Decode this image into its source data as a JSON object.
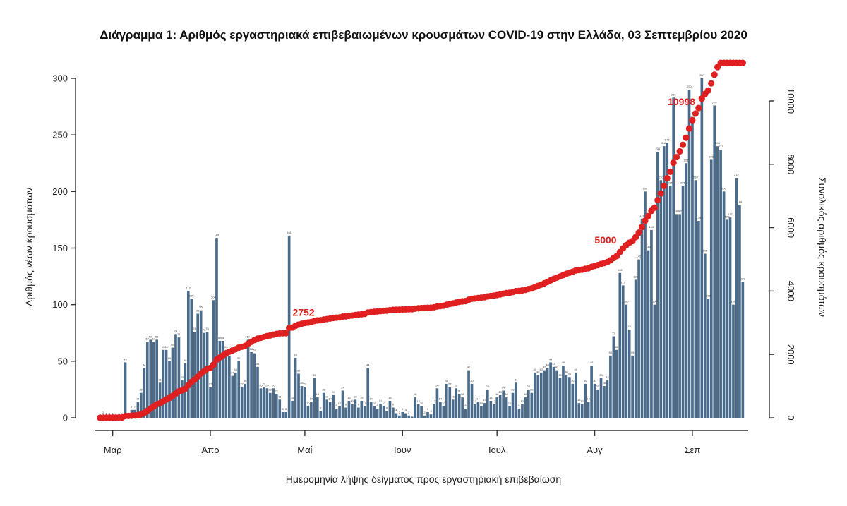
{
  "chart_data": {
    "type": "bar",
    "title": "Διάγραμμα 1: Αριθμός εργαστηριακά επιβεβαιωμένων κρουσμάτων COVID-19 στην Ελλάδα, 03 Σεπτεμβρίου 2020",
    "xlabel": "Ημερομηνία λήψης δείγματος προς εργαστηριακή επιβεβαίωση",
    "ylabel_left": "Αριθμός νέων κρουσμάτων",
    "ylabel_right": "Συνολικός αριθμός κρουσμάτων",
    "x_start_date": "2020-02-26",
    "month_ticks": [
      {
        "label": "Μαρ",
        "day": 4
      },
      {
        "label": "Απρ",
        "day": 35
      },
      {
        "label": "Μαΐ",
        "day": 65
      },
      {
        "label": "Ιουν",
        "day": 96
      },
      {
        "label": "Ιουλ",
        "day": 126
      },
      {
        "label": "Αυγ",
        "day": 157
      },
      {
        "label": "Σεπ",
        "day": 188
      }
    ],
    "ylim_left": [
      0,
      300
    ],
    "yticks_left": [
      0,
      50,
      100,
      150,
      200,
      250,
      300
    ],
    "ylim_right": [
      0,
      10000
    ],
    "yticks_right": [
      0,
      2000,
      4000,
      6000,
      8000,
      10000
    ],
    "daily_new_cases": [
      1,
      2,
      1,
      1,
      1,
      1,
      1,
      1,
      49,
      1,
      7,
      7,
      14,
      22,
      44,
      67,
      69,
      67,
      69,
      31,
      60,
      60,
      50,
      62,
      74,
      71,
      33,
      48,
      112,
      105,
      76,
      92,
      95,
      75,
      76,
      27,
      104,
      159,
      68,
      68,
      60,
      55,
      37,
      40,
      50,
      27,
      30,
      69,
      58,
      57,
      45,
      26,
      27,
      26,
      22,
      26,
      21,
      16,
      5,
      5,
      161,
      15,
      53,
      39,
      28,
      27,
      10,
      14,
      35,
      18,
      6,
      22,
      16,
      14,
      20,
      8,
      10,
      24,
      9,
      15,
      12,
      16,
      9,
      15,
      10,
      44,
      14,
      10,
      8,
      12,
      10,
      6,
      15,
      9,
      4,
      2,
      5,
      4,
      2,
      1,
      18,
      12,
      10,
      2,
      5,
      3,
      12,
      26,
      14,
      10,
      30,
      27,
      16,
      26,
      21,
      18,
      8,
      42,
      30,
      12,
      14,
      10,
      13,
      25,
      15,
      12,
      18,
      20,
      24,
      18,
      10,
      22,
      31,
      8,
      12,
      18,
      25,
      22,
      40,
      38,
      40,
      42,
      44,
      49,
      45,
      42,
      35,
      46,
      38,
      36,
      30,
      40,
      13,
      12,
      30,
      14,
      46,
      30,
      25,
      35,
      28,
      33,
      55,
      72,
      60,
      128,
      117,
      100,
      78,
      55,
      122,
      140,
      176,
      200,
      148,
      166,
      100,
      235,
      210,
      240,
      243,
      205,
      283,
      180,
      180,
      205,
      225,
      290,
      263,
      210,
      174,
      300,
      145,
      105,
      228,
      276,
      240,
      237,
      200,
      175,
      177,
      100,
      212,
      188,
      120
    ],
    "cumulative_cases": [
      1,
      3,
      4,
      5,
      6,
      7,
      8,
      9,
      58,
      59,
      66,
      73,
      87,
      109,
      153,
      220,
      289,
      356,
      425,
      456,
      516,
      576,
      626,
      688,
      762,
      833,
      866,
      914,
      1026,
      1131,
      1207,
      1299,
      1394,
      1469,
      1545,
      1572,
      1676,
      1835,
      1903,
      1971,
      2031,
      2086,
      2123,
      2163,
      2213,
      2240,
      2270,
      2339,
      2397,
      2454,
      2499,
      2525,
      2552,
      2578,
      2600,
      2626,
      2647,
      2663,
      2668,
      2673,
      2834,
      2849,
      2902,
      2941,
      2969,
      2996,
      3006,
      3020,
      3055,
      3073,
      3079,
      3101,
      3117,
      3131,
      3151,
      3159,
      3169,
      3193,
      3202,
      3217,
      3229,
      3245,
      3254,
      3269,
      3279,
      3323,
      3337,
      3347,
      3355,
      3367,
      3377,
      3383,
      3398,
      3407,
      3411,
      3413,
      3418,
      3422,
      3424,
      3425,
      3443,
      3455,
      3465,
      3467,
      3472,
      3475,
      3487,
      3513,
      3527,
      3537,
      3567,
      3594,
      3610,
      3636,
      3657,
      3675,
      3683,
      3725,
      3755,
      3767,
      3781,
      3791,
      3804,
      3829,
      3844,
      3856,
      3874,
      3894,
      3918,
      3936,
      3946,
      3968,
      3999,
      4007,
      4019,
      4037,
      4062,
      4084,
      4124,
      4162,
      4202,
      4244,
      4288,
      4337,
      4382,
      4424,
      4459,
      4505,
      4543,
      4579,
      4609,
      4649,
      4662,
      4674,
      4704,
      4718,
      4764,
      4794,
      4819,
      4854,
      4882,
      4915,
      4970,
      5042,
      5102,
      5230,
      5347,
      5447,
      5525,
      5580,
      5702,
      5842,
      6018,
      6218,
      6366,
      6532,
      6632,
      6867,
      7077,
      7317,
      7560,
      7765,
      8048,
      8228,
      8408,
      8613,
      8838,
      9128,
      9391,
      9601,
      9775,
      10075,
      10220,
      10325,
      10553,
      10829,
      11069,
      11306,
      11506,
      11681,
      11858,
      11958,
      12170,
      12358,
      12478
    ],
    "annotations": [
      {
        "label": "2752",
        "day": 65
      },
      {
        "label": "5000",
        "day": 164
      },
      {
        "label": "10998",
        "day": 189
      }
    ],
    "bar_color": "#4a6b8a",
    "line_color": "#e02020"
  }
}
